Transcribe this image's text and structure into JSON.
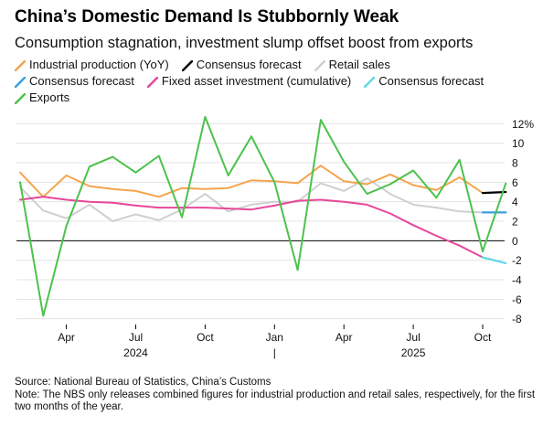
{
  "header": {
    "title": "China’s Domestic Demand Is Stubbornly Weak",
    "subtitle": "Consumption stagnation, investment slump offset boost from exports"
  },
  "legend": {
    "rows": [
      [
        {
          "label": "Industrial production (YoY)",
          "color": "#f4a44e",
          "icon": "line-swatch"
        },
        {
          "label": "Consensus forecast",
          "color": "#000000",
          "icon": "line-swatch"
        },
        {
          "label": "Retail sales",
          "color": "#cfcfcf",
          "icon": "line-swatch"
        }
      ],
      [
        {
          "label": "Consensus forecast",
          "color": "#3aa0e0",
          "icon": "line-swatch"
        },
        {
          "label": "Fixed asset investment (cumulative)",
          "color": "#e8479a",
          "icon": "line-swatch"
        },
        {
          "label": "Consensus forecast",
          "color": "#5fd9e6",
          "icon": "line-swatch"
        }
      ],
      [
        {
          "label": "Exports",
          "color": "#4cc24c",
          "icon": "line-swatch"
        }
      ]
    ]
  },
  "chart_data": {
    "type": "line",
    "x": [
      "2024-02",
      "2024-03",
      "2024-04",
      "2024-05",
      "2024-06",
      "2024-07",
      "2024-08",
      "2024-09",
      "2024-10",
      "2024-11",
      "2024-12",
      "2025-01",
      "2025-02",
      "2025-03",
      "2025-04",
      "2025-05",
      "2025-06",
      "2025-07",
      "2025-08",
      "2025-09",
      "2025-10",
      "2025-11",
      "2025-12"
    ],
    "x_ticks": [
      {
        "x": "2024-04",
        "label": "Apr"
      },
      {
        "x": "2024-07",
        "label": "Jul"
      },
      {
        "x": "2024-10",
        "label": "Oct"
      },
      {
        "x": "2025-01",
        "label": "Jan"
      },
      {
        "x": "2025-04",
        "label": "Apr"
      },
      {
        "x": "2025-07",
        "label": "Jul"
      },
      {
        "x": "2025-10",
        "label": "Oct"
      }
    ],
    "year_labels": [
      {
        "x": "2024-07",
        "label": "2024"
      },
      {
        "x": "2025-01",
        "label": "|"
      },
      {
        "x": "2025-07",
        "label": "2025"
      }
    ],
    "y_ticks": [
      {
        "value": 12,
        "label": "12%"
      },
      {
        "value": 10,
        "label": "10"
      },
      {
        "value": 8,
        "label": "8"
      },
      {
        "value": 6,
        "label": "6"
      },
      {
        "value": 4,
        "label": "4"
      },
      {
        "value": 2,
        "label": "2"
      },
      {
        "value": 0,
        "label": "0"
      },
      {
        "value": -2,
        "label": "-2"
      },
      {
        "value": -4,
        "label": "-4"
      },
      {
        "value": -6,
        "label": "-6"
      },
      {
        "value": -8,
        "label": "-8"
      }
    ],
    "ylim": [
      -8.5,
      12.5
    ],
    "grid": true,
    "series": [
      {
        "name": "Retail sales",
        "color": "#cfcfcf",
        "points": [
          [
            "2024-02",
            5.5
          ],
          [
            "2024-03",
            3.1
          ],
          [
            "2024-04",
            2.3
          ],
          [
            "2024-05",
            3.7
          ],
          [
            "2024-06",
            2.0
          ],
          [
            "2024-07",
            2.7
          ],
          [
            "2024-08",
            2.1
          ],
          [
            "2024-09",
            3.2
          ],
          [
            "2024-10",
            4.8
          ],
          [
            "2024-11",
            3.0
          ],
          [
            "2024-12",
            3.7
          ],
          [
            "2025-01",
            4.0
          ],
          [
            "2025-02",
            4.0
          ],
          [
            "2025-03",
            5.9
          ],
          [
            "2025-04",
            5.1
          ],
          [
            "2025-05",
            6.4
          ],
          [
            "2025-06",
            4.8
          ],
          [
            "2025-07",
            3.7
          ],
          [
            "2025-08",
            3.4
          ],
          [
            "2025-09",
            3.0
          ],
          [
            "2025-10",
            2.9
          ],
          [
            "2025-11",
            2.9
          ]
        ]
      },
      {
        "name": "Industrial production (YoY)",
        "color": "#f4a44e",
        "points": [
          [
            "2024-02",
            7.0
          ],
          [
            "2024-03",
            4.5
          ],
          [
            "2024-04",
            6.7
          ],
          [
            "2024-05",
            5.6
          ],
          [
            "2024-06",
            5.3
          ],
          [
            "2024-07",
            5.1
          ],
          [
            "2024-08",
            4.5
          ],
          [
            "2024-09",
            5.4
          ],
          [
            "2024-10",
            5.3
          ],
          [
            "2024-11",
            5.4
          ],
          [
            "2024-12",
            6.2
          ],
          [
            "2025-01",
            6.1
          ],
          [
            "2025-02",
            5.9
          ],
          [
            "2025-03",
            7.7
          ],
          [
            "2025-04",
            6.1
          ],
          [
            "2025-05",
            5.8
          ],
          [
            "2025-06",
            6.8
          ],
          [
            "2025-07",
            5.7
          ],
          [
            "2025-08",
            5.2
          ],
          [
            "2025-09",
            6.5
          ],
          [
            "2025-10",
            4.9
          ]
        ]
      },
      {
        "name": "Consensus forecast",
        "color": "#000000",
        "width": 2.2,
        "points": [
          [
            "2025-10",
            4.9
          ],
          [
            "2025-11",
            5.0
          ]
        ]
      },
      {
        "name": "Fixed asset investment (cumulative)",
        "color": "#e8479a",
        "points": [
          [
            "2024-02",
            4.2
          ],
          [
            "2024-03",
            4.5
          ],
          [
            "2024-04",
            4.2
          ],
          [
            "2024-05",
            4.0
          ],
          [
            "2024-06",
            3.9
          ],
          [
            "2024-07",
            3.6
          ],
          [
            "2024-08",
            3.4
          ],
          [
            "2024-09",
            3.4
          ],
          [
            "2024-10",
            3.4
          ],
          [
            "2024-11",
            3.3
          ],
          [
            "2024-12",
            3.2
          ],
          [
            "2025-01",
            3.6
          ],
          [
            "2025-02",
            4.1
          ],
          [
            "2025-03",
            4.2
          ],
          [
            "2025-04",
            4.0
          ],
          [
            "2025-05",
            3.7
          ],
          [
            "2025-06",
            2.8
          ],
          [
            "2025-07",
            1.6
          ],
          [
            "2025-08",
            0.5
          ],
          [
            "2025-09",
            -0.5
          ],
          [
            "2025-10",
            -1.7
          ]
        ]
      },
      {
        "name": "Consensus forecast",
        "color": "#3aa0e0",
        "width": 2.2,
        "points": [
          [
            "2025-10",
            2.9
          ],
          [
            "2025-11",
            2.9
          ]
        ]
      },
      {
        "name": "Consensus forecast",
        "color": "#5fd9e6",
        "width": 2.2,
        "points": [
          [
            "2025-10",
            -1.7
          ],
          [
            "2025-11",
            -2.3
          ]
        ]
      },
      {
        "name": "Exports",
        "color": "#4cc24c",
        "points": [
          [
            "2024-02",
            6.0
          ],
          [
            "2024-03",
            -7.7
          ],
          [
            "2024-04",
            1.5
          ],
          [
            "2024-05",
            7.6
          ],
          [
            "2024-06",
            8.6
          ],
          [
            "2024-07",
            7.0
          ],
          [
            "2024-08",
            8.7
          ],
          [
            "2024-09",
            2.4
          ],
          [
            "2024-10",
            12.7
          ],
          [
            "2024-11",
            6.7
          ],
          [
            "2024-12",
            10.7
          ],
          [
            "2025-01",
            6.0
          ],
          [
            "2025-02",
            -3.0
          ],
          [
            "2025-03",
            12.4
          ],
          [
            "2025-04",
            8.1
          ],
          [
            "2025-05",
            4.8
          ],
          [
            "2025-06",
            5.8
          ],
          [
            "2025-07",
            7.2
          ],
          [
            "2025-08",
            4.4
          ],
          [
            "2025-09",
            8.3
          ],
          [
            "2025-10",
            -1.1
          ],
          [
            "2025-11",
            5.9
          ]
        ]
      }
    ]
  },
  "footer": {
    "source": "Source: National Bureau of Statistics, China’s Customs",
    "note": "Note: The NBS only releases combined figures for industrial production and retail sales, respectively, for the first two months of the year."
  }
}
